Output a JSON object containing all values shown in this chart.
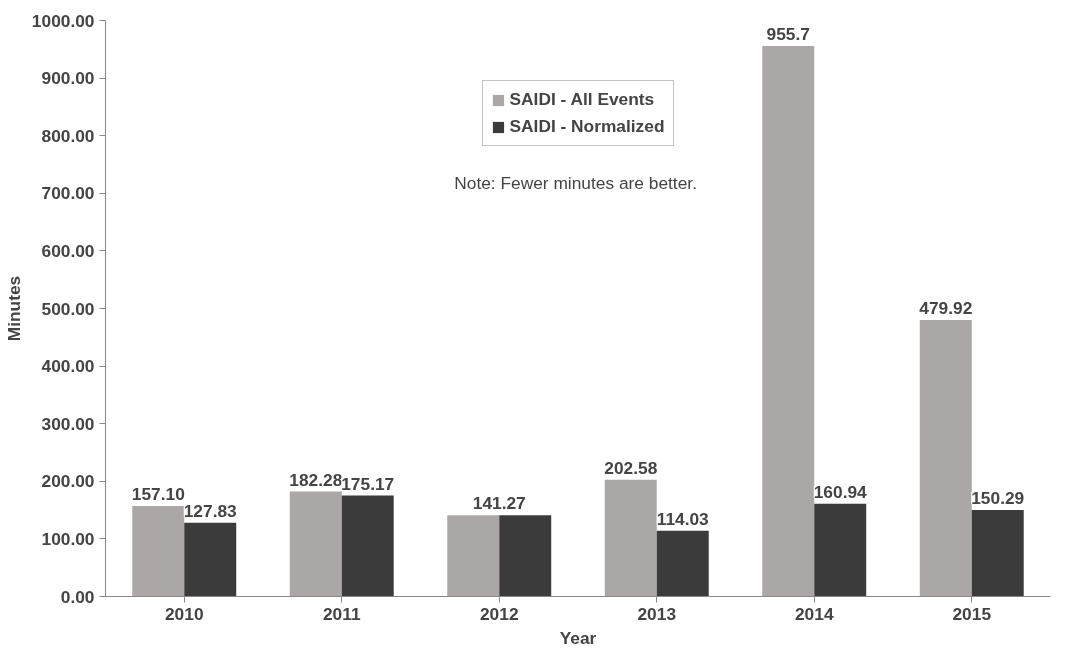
{
  "chart_data": {
    "type": "bar",
    "xlabel": "Year",
    "ylabel": "Minutes",
    "categories": [
      "2010",
      "2011",
      "2012",
      "2013",
      "2014",
      "2015"
    ],
    "series": [
      {
        "name": "SAIDI - All Events",
        "color": "#aba7a6",
        "values": [
          157.1,
          182.28,
          141.27,
          202.58,
          955.7,
          479.92
        ],
        "value_labels": [
          "157.10",
          "182.28",
          "141.27",
          "202.58",
          "955.7",
          "479.92"
        ]
      },
      {
        "name": "SAIDI - Normalized",
        "color": "#3b3b3b",
        "values": [
          127.83,
          175.17,
          141.27,
          114.03,
          160.94,
          150.29
        ],
        "value_labels": [
          "127.83",
          "175.17",
          null,
          "114.03",
          "160.94",
          "150.29"
        ]
      }
    ],
    "ylim": [
      0,
      1000
    ],
    "yticks": [
      {
        "value": 0,
        "label": "0.00"
      },
      {
        "value": 100,
        "label": "100.00"
      },
      {
        "value": 200,
        "label": "200.00"
      },
      {
        "value": 300,
        "label": "300.00"
      },
      {
        "value": 400,
        "label": "400.00"
      },
      {
        "value": 500,
        "label": "500.00"
      },
      {
        "value": 600,
        "label": "600.00"
      },
      {
        "value": 700,
        "label": "700.00"
      },
      {
        "value": 800,
        "label": "800.00"
      },
      {
        "value": 900,
        "label": "900.00"
      },
      {
        "value": 1000,
        "label": "1000.00"
      }
    ],
    "annotations": [
      "Note:  Fewer minutes are better."
    ],
    "grid": false,
    "legend": "top"
  }
}
